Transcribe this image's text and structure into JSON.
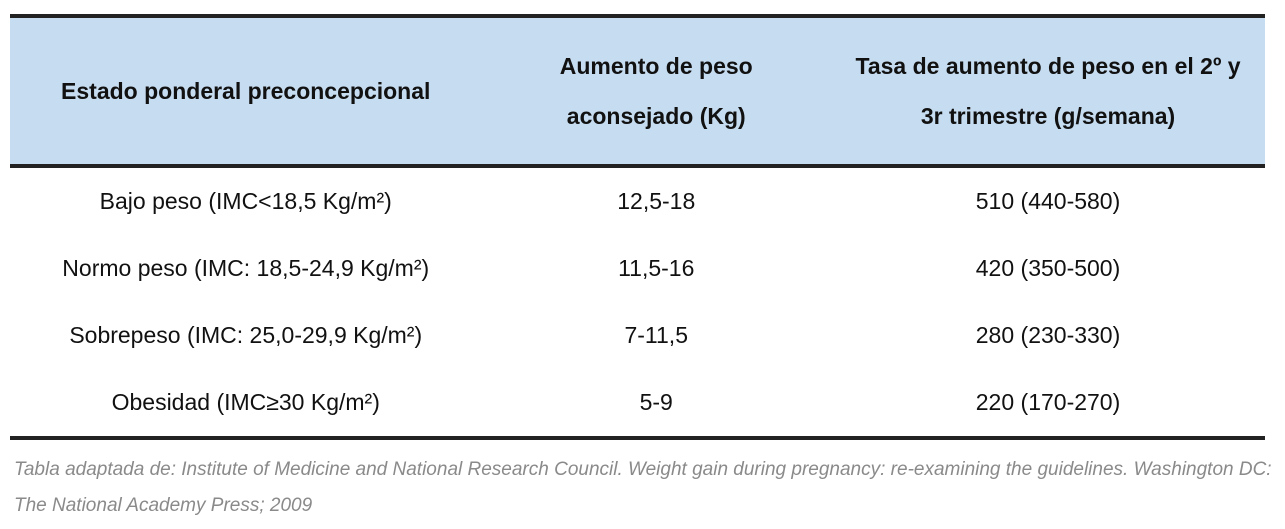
{
  "table": {
    "headers": [
      "Estado ponderal preconcepcional",
      "Aumento de peso aconsejado (Kg)",
      "Tasa de aumento de peso en el 2º y 3r trimestre (g/semana)"
    ],
    "rows": [
      [
        "Bajo peso (IMC<18,5 Kg/m²)",
        "12,5-18",
        "510 (440-580)"
      ],
      [
        "Normo peso (IMC: 18,5-24,9 Kg/m²)",
        "11,5-16",
        "420 (350-500)"
      ],
      [
        "Sobrepeso (IMC: 25,0-29,9 Kg/m²)",
        "7-11,5",
        "280 (230-330)"
      ],
      [
        "Obesidad (IMC≥30 Kg/m²)",
        "5-9",
        "220 (170-270)"
      ]
    ]
  },
  "footnote": "Tabla adaptada de: Institute of Medicine and National Research Council. Weight gain during pregnancy: re-examining the guidelines. Washington DC: The National Academy Press; 2009"
}
